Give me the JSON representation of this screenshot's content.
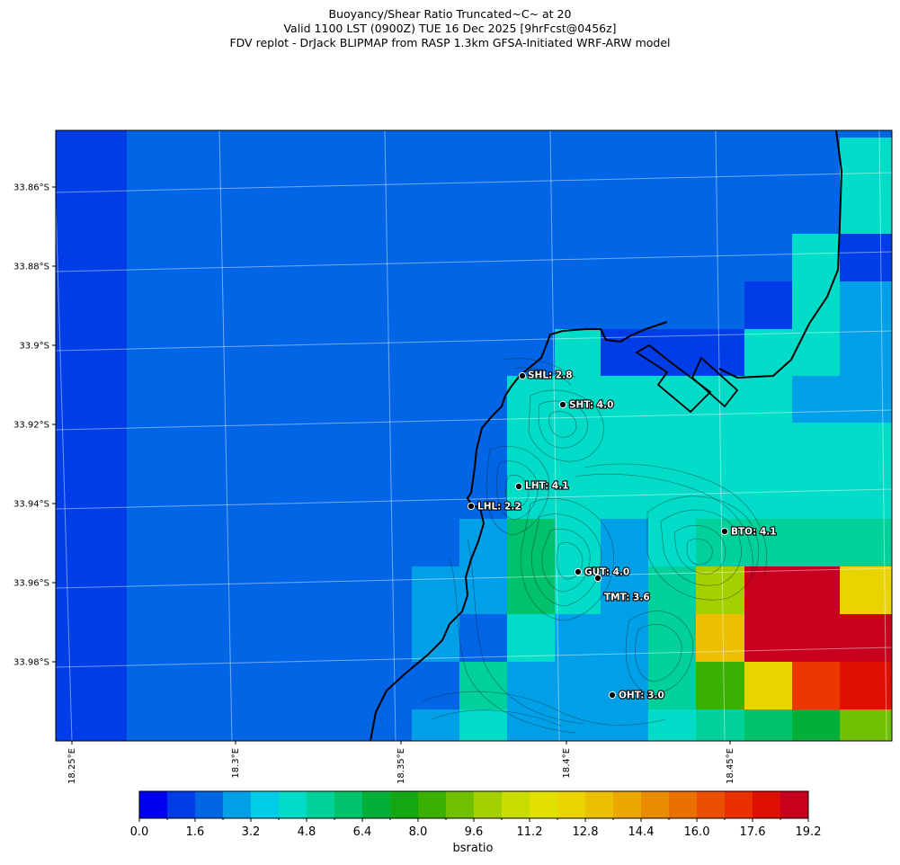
{
  "title": {
    "line1": "Buoyancy/Shear Ratio Truncated~C~    at 20",
    "line2": "Valid 1100 LST (0900Z) TUE 16 Dec 2025 [9hrFcst@0456z]",
    "line3": "FDV replot - DrJack BLIPMAP from RASP 1.3km GFSA-Initiated WRF-ARW model"
  },
  "axes": {
    "lat_ticks": [
      "33.86°S",
      "33.88°S",
      "33.9°S",
      "33.92°S",
      "33.94°S",
      "33.96°S",
      "33.98°S"
    ],
    "lon_ticks": [
      "18.25°E",
      "18.3°E",
      "18.35°E",
      "18.4°E",
      "18.45°E"
    ]
  },
  "colorbar": {
    "label": "bsratio",
    "ticks": [
      "0.0",
      "1.6",
      "3.2",
      "4.8",
      "6.4",
      "8.0",
      "9.6",
      "11.2",
      "12.8",
      "14.4",
      "16.0",
      "17.6",
      "19.2"
    ],
    "colors": [
      "#0000f0",
      "#003ce8",
      "#0066e6",
      "#00a0e8",
      "#00cce8",
      "#00dcc8",
      "#00d09a",
      "#00c26a",
      "#00b038",
      "#14a814",
      "#3cb000",
      "#70c000",
      "#a4d000",
      "#c8dc00",
      "#e2e000",
      "#ead400",
      "#eac000",
      "#eaa800",
      "#ea8c00",
      "#ea7000",
      "#ea5000",
      "#ea3000",
      "#e01000",
      "#c8001e"
    ]
  },
  "stations": [
    {
      "label": "SHL: 2.8"
    },
    {
      "label": "SHT: 4.0"
    },
    {
      "label": "LHT: 4.1"
    },
    {
      "label": "LHL: 2.2"
    },
    {
      "label": "BTO: 4.1"
    },
    {
      "label": "GUT: 4.0"
    },
    {
      "label": "TMT: 3.6"
    },
    {
      "label": "OHT: 3.0"
    }
  ]
}
